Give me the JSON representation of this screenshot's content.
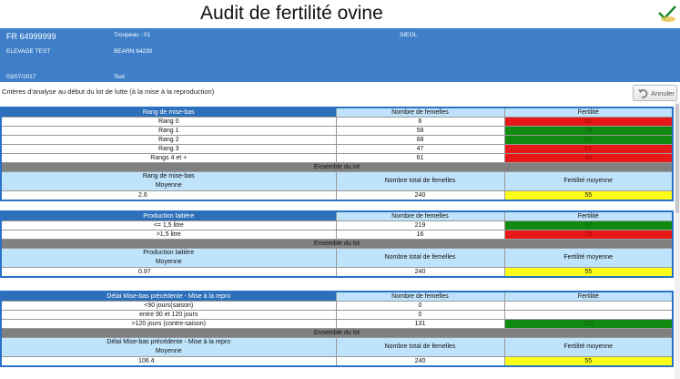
{
  "title": "Audit de fertilité ovine",
  "header": {
    "id": "FR 64999999",
    "troupeau": "Troupeau : 01",
    "org": "SIEOL",
    "elevage": "ELEVAGE TEST",
    "lieu": "BEARN  64230",
    "date": "03/07/2017",
    "test": "Test"
  },
  "criteria_text": "Critères d'analyse au début du lot de lutte (à la mise à la reproduction)",
  "annuler_label": "Annuler",
  "colors": {
    "red": "#e81818",
    "green": "#118a11",
    "yellow": "#ffff1a",
    "header_blue": "#3f7fc9",
    "light_blue": "#bfe3fb"
  },
  "tables": [
    {
      "header": [
        "Rang de mise-bas",
        "Nombre de femelles",
        "Fertilité"
      ],
      "rows": [
        {
          "label": "Rang 0",
          "count": "6",
          "fert": "50",
          "color": "red"
        },
        {
          "label": "Rang 1",
          "count": "58",
          "fert": "76",
          "color": "green"
        },
        {
          "label": "Rang 2",
          "count": "68",
          "fert": "57",
          "color": "green"
        },
        {
          "label": "Rang 3",
          "count": "47",
          "fert": "51",
          "color": "red"
        },
        {
          "label": "Rangs 4 et +",
          "count": "61",
          "fert": "34",
          "color": "red"
        }
      ],
      "ensemble": "Ensemble du lot",
      "summary_label_1": "Rang de mise-bas",
      "summary_label_2": "Moyenne",
      "summary_total_label": "Nombre total de femelles",
      "summary_fert_label": "Fertilité moyenne",
      "summary_values": [
        "2.6",
        "240",
        "55"
      ]
    },
    {
      "header": [
        "Production laitière",
        "Nombre de femelles",
        "Fertilité"
      ],
      "rows": [
        {
          "label": "<= 1,5 litre",
          "count": "219",
          "fert": "57",
          "color": "green"
        },
        {
          "label": ">1,5 litre",
          "count": "16",
          "fert": "25",
          "color": "red"
        }
      ],
      "ensemble": "Ensemble du lot",
      "summary_label_1": "Production laitière",
      "summary_label_2": "Moyenne",
      "summary_total_label": "Nombre total de femelles",
      "summary_fert_label": "Fertilité moyenne",
      "summary_values": [
        "0.97",
        "240",
        "55"
      ]
    },
    {
      "header": [
        "Délai Mise-bas précédente - Mise à la repro",
        "Nombre de femelles",
        "Fertilité"
      ],
      "rows": [
        {
          "label": "<90 jours(saison)",
          "count": "0",
          "fert": "",
          "color": "none"
        },
        {
          "label": "entre 90 et 120 jours",
          "count": "0",
          "fert": "",
          "color": "none"
        },
        {
          "label": ">120 jours (contre-saison)",
          "count": "131",
          "fert": "100",
          "color": "green"
        }
      ],
      "ensemble": "Ensemble du lot",
      "summary_label_1": "Délai Mise-bas précédente - Mise à la repro",
      "summary_label_2": "Moyenne",
      "summary_total_label": "Nombre total de femelles",
      "summary_fert_label": "Fertilité moyenne",
      "summary_values": [
        "106.4",
        "240",
        "55"
      ]
    }
  ]
}
